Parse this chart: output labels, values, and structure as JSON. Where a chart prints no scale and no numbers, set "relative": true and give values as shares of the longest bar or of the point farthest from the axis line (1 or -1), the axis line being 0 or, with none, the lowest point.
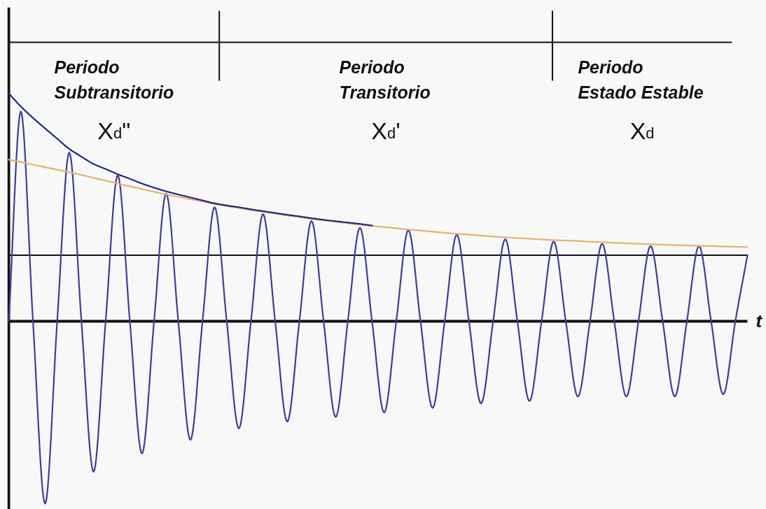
{
  "chart_data": {
    "type": "line",
    "relative": true,
    "xlabel": "t",
    "categories": [
      null,
      null,
      null,
      null,
      null,
      null,
      null,
      null,
      null,
      null,
      null,
      null,
      null,
      null,
      null,
      null,
      null,
      null,
      null,
      null,
      null,
      null,
      null,
      null,
      null,
      null,
      null,
      null,
      null,
      null,
      null,
      null,
      null,
      null,
      null,
      null,
      null,
      null,
      null,
      null,
      null,
      null,
      null,
      null,
      null,
      null,
      null,
      null,
      null,
      null,
      null,
      null,
      null,
      null,
      null,
      null,
      null,
      null,
      null,
      null,
      null,
      null
    ],
    "series": [
      {
        "color": "#3d3d9e",
        "values": [
          0,
          0.92,
          0,
          -0.8,
          0,
          0.74,
          0,
          -0.66,
          0,
          0.64,
          0,
          -0.58,
          0,
          0.56,
          0,
          -0.52,
          0,
          0.5,
          0,
          -0.47,
          0,
          0.47,
          0,
          -0.44,
          0,
          0.44,
          0,
          -0.42,
          0,
          0.41,
          0,
          -0.4,
          0,
          0.4,
          0,
          -0.38,
          0,
          0.38,
          0,
          -0.36,
          0,
          0.36,
          0,
          -0.35,
          0,
          0.35,
          0,
          -0.33,
          0,
          0.34,
          0,
          -0.33,
          0,
          0.33,
          0,
          -0.33,
          0,
          0.33,
          0,
          -0.32,
          0,
          0.29
        ]
      },
      {
        "color": "#eab06a",
        "values": [
          0.709,
          0.698,
          0.687,
          0.676,
          0.665,
          0.654,
          0.642,
          0.629,
          0.617,
          0.604,
          0.592,
          0.58,
          0.568,
          0.556,
          0.546,
          0.535,
          0.525,
          0.514,
          0.505,
          0.497,
          0.488,
          0.48,
          0.472,
          0.464,
          0.457,
          0.449,
          0.443,
          0.436,
          0.43,
          0.424,
          0.418,
          0.413,
          0.408,
          0.402,
          0.398,
          0.393,
          0.388,
          0.384,
          0.38,
          0.376,
          0.372,
          0.368,
          0.365,
          0.362,
          0.359,
          0.356,
          0.354,
          0.352,
          0.349,
          0.347,
          0.344,
          0.342,
          0.34,
          0.338,
          0.336,
          0.334,
          0.333,
          0.331,
          0.33,
          0.328,
          0.327,
          0.325
        ]
      },
      {
        "color": "#1f2a8a",
        "values": [
          1.0,
          0.942,
          0.892,
          0.846,
          0.801,
          0.756,
          0.722,
          0.69,
          0.668,
          0.645,
          0.625,
          0.604,
          0.586,
          0.57,
          0.556,
          0.543,
          0.53,
          0.517,
          0.508,
          0.5,
          0.491,
          0.483,
          0.475,
          0.467,
          0.46,
          0.452,
          0.445,
          0.439,
          0.433,
          0.427,
          0.42,
          null,
          null,
          null,
          null,
          null,
          null,
          null,
          null,
          null,
          null,
          null,
          null,
          null,
          null,
          null,
          null,
          null,
          null,
          null,
          null,
          null,
          null,
          null,
          null,
          null,
          null,
          null,
          null,
          null,
          null,
          null
        ]
      }
    ],
    "ref_lines": [
      {
        "axis": "y",
        "value": 0.29
      }
    ],
    "annotations": [
      "Periodo\nSubtransitorio",
      "X$_{d}$\"",
      "Periodo\nTransitorio",
      "X$_{d}$'",
      "Periodo\nEstado Estable",
      "X$_{d}$"
    ]
  }
}
